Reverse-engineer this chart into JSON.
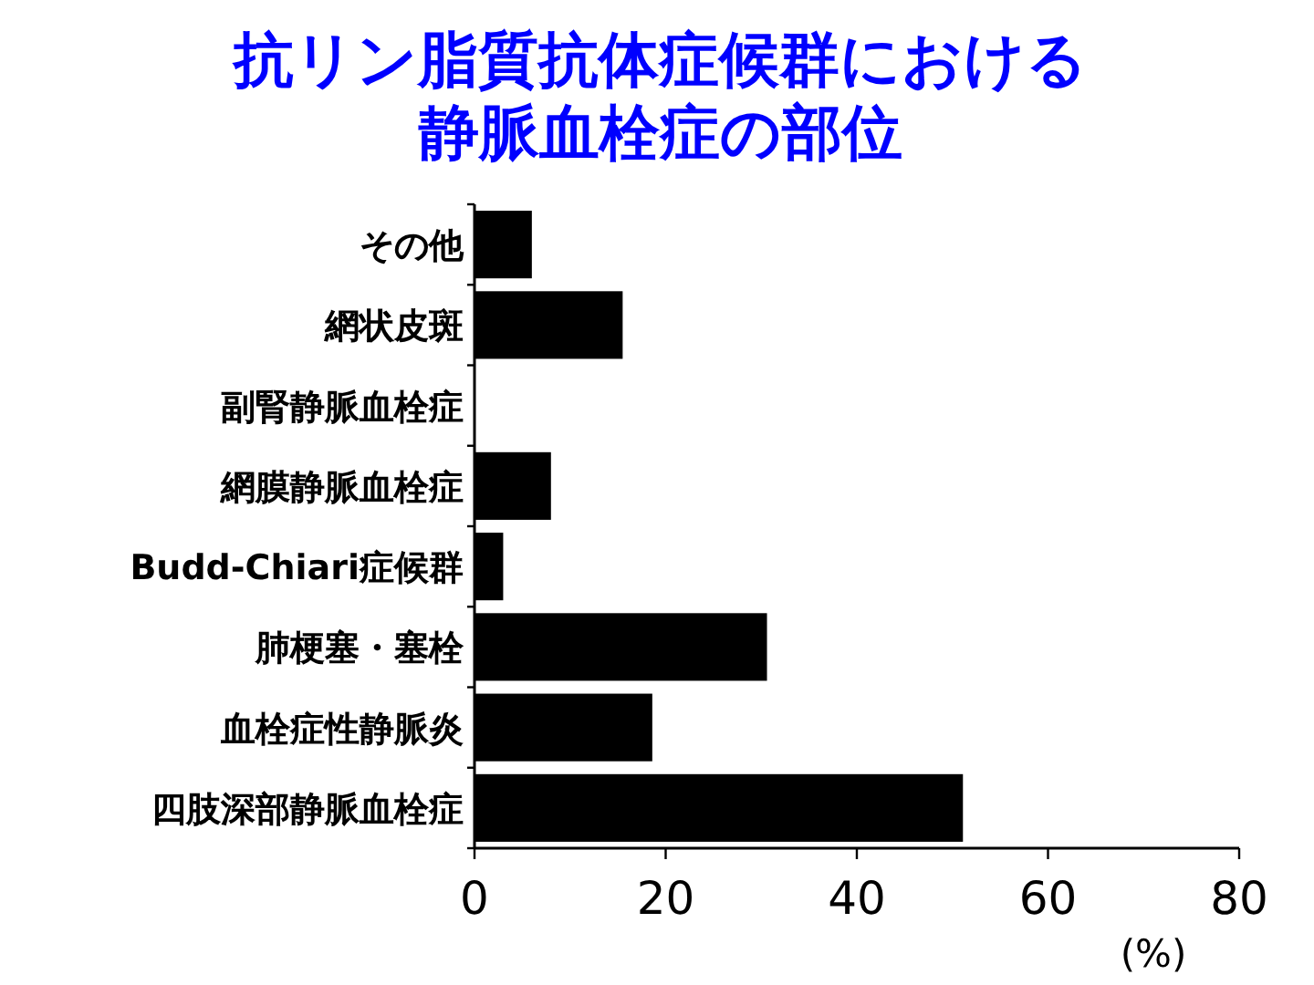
{
  "chart_data": {
    "type": "bar",
    "orientation": "horizontal",
    "title": "抗リン脂質抗体症候群における静脈血栓症の部位",
    "xlabel": "(%)",
    "categories": [
      "その他",
      "網状皮斑",
      "副腎静脈血栓症",
      "網膜静脈血栓症",
      "Budd-Chiari症候群",
      "肺梗塞・塞栓",
      "血栓症性静脈炎",
      "四肢深部静脈血栓症"
    ],
    "values": [
      6,
      15.5,
      0,
      8,
      3,
      30.6,
      18.6,
      51.1
    ],
    "color": "#000000",
    "xlim": [
      0,
      80
    ],
    "xticks": [
      0,
      20,
      40,
      60,
      80
    ],
    "grid": false
  }
}
